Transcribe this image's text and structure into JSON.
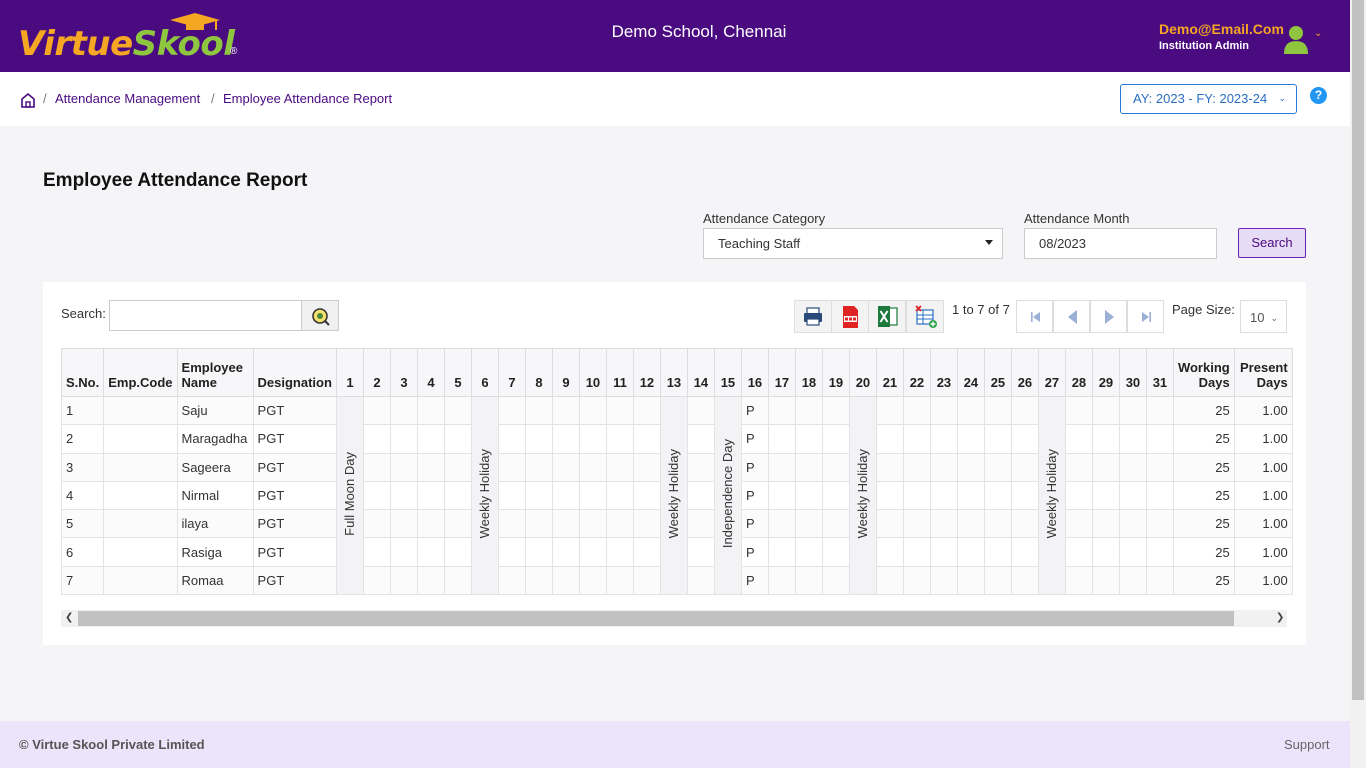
{
  "header": {
    "logo_text_1": "Virtue",
    "logo_text_2": "Skool",
    "logo_reg": "®",
    "school_name": "Demo School, Chennai",
    "user_email": "Demo@Email.Com",
    "user_role": "Institution Admin"
  },
  "breadcrumb": {
    "sep": "/",
    "items": [
      "Attendance Management",
      "Employee Attendance Report"
    ]
  },
  "academic_year": "AY: 2023 - FY: 2023-24",
  "help": "?",
  "page_title": "Employee Attendance Report",
  "filters": {
    "category_label": "Attendance Category",
    "category_value": "Teaching Staff",
    "month_label": "Attendance Month",
    "month_value": "08/2023",
    "search_label": "Search"
  },
  "grid": {
    "search_label": "Search:",
    "pager_text": "1 to 7 of 7",
    "page_size_label": "Page Size:",
    "page_size": "10",
    "columns": {
      "sno": "S.No.",
      "emp_code": "Emp.Code",
      "employee_name": "Employee Name",
      "designation": "Designation",
      "days": [
        "1",
        "2",
        "3",
        "4",
        "5",
        "6",
        "7",
        "8",
        "9",
        "10",
        "11",
        "12",
        "13",
        "14",
        "15",
        "16",
        "17",
        "18",
        "19",
        "20",
        "21",
        "22",
        "23",
        "24",
        "25",
        "26",
        "27",
        "28",
        "29",
        "30",
        "31"
      ],
      "working_days": "Working Days",
      "present_days": "Present Days"
    },
    "holidays": {
      "d1": "Full Moon Day",
      "d6": "Weekly Holiday",
      "d13": "Weekly Holiday",
      "d15": "Independence Day",
      "d20": "Weekly Holiday",
      "d27": "Weekly Holiday"
    },
    "rows": [
      {
        "sno": "1",
        "emp_code": "",
        "name": "Saju",
        "designation": "PGT",
        "d16": "P",
        "working": "25",
        "present": "1.00"
      },
      {
        "sno": "2",
        "emp_code": "",
        "name": "Maragadha",
        "designation": "PGT",
        "d16": "P",
        "working": "25",
        "present": "1.00"
      },
      {
        "sno": "3",
        "emp_code": "",
        "name": "Sageera",
        "designation": "PGT",
        "d16": "P",
        "working": "25",
        "present": "1.00"
      },
      {
        "sno": "4",
        "emp_code": "",
        "name": "Nirmal",
        "designation": "PGT",
        "d16": "P",
        "working": "25",
        "present": "1.00"
      },
      {
        "sno": "5",
        "emp_code": "",
        "name": "ilaya",
        "designation": "PGT",
        "d16": "P",
        "working": "25",
        "present": "1.00"
      },
      {
        "sno": "6",
        "emp_code": "",
        "name": "Rasiga",
        "designation": "PGT",
        "d16": "P",
        "working": "25",
        "present": "1.00"
      },
      {
        "sno": "7",
        "emp_code": "",
        "name": "Romaa",
        "designation": "PGT",
        "d16": "P",
        "working": "25",
        "present": "1.00"
      }
    ]
  },
  "footer": {
    "copyright": "© Virtue Skool Private Limited",
    "support": "Support"
  }
}
